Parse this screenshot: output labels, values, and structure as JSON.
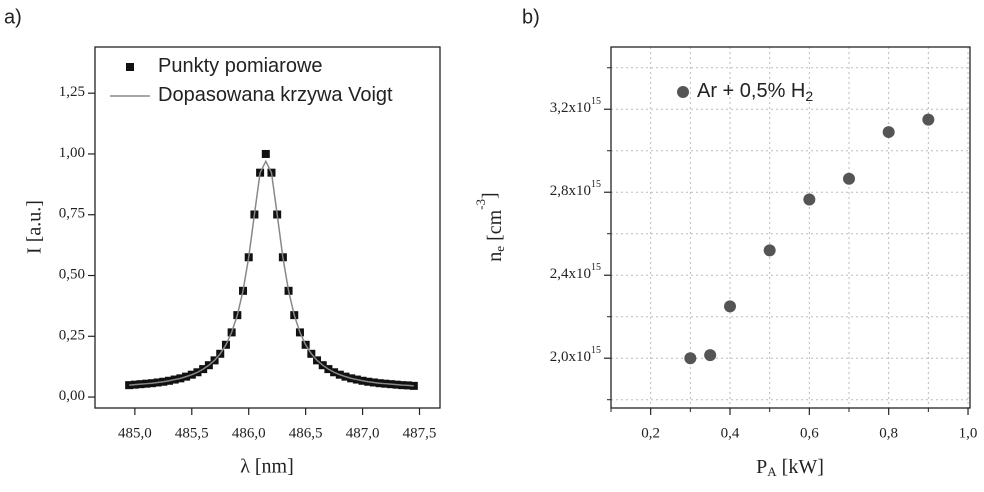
{
  "chart_data": [
    {
      "type": "line",
      "panel_label": "a)",
      "xlabel": "λ [nm]",
      "ylabel": "I [a.u.]",
      "x": [
        484.95,
        485.0,
        485.05,
        485.1,
        485.15,
        485.2,
        485.25,
        485.3,
        485.35,
        485.4,
        485.45,
        485.5,
        485.55,
        485.6,
        485.65,
        485.7,
        485.75,
        485.8,
        485.85,
        485.9,
        485.95,
        486.0,
        486.05,
        486.1,
        486.15,
        486.2,
        486.25,
        486.3,
        486.35,
        486.4,
        486.45,
        486.5,
        486.55,
        486.6,
        486.65,
        486.7,
        486.75,
        486.8,
        486.85,
        486.9,
        486.95,
        487.0,
        487.05,
        487.1,
        487.15,
        487.2,
        487.25,
        487.3,
        487.35,
        487.4,
        487.45
      ],
      "series": [
        {
          "name": "Punkty pomiarowe",
          "color": "#111111",
          "style": "square",
          "values": [
            0.049,
            0.051,
            0.053,
            0.055,
            0.057,
            0.06,
            0.063,
            0.067,
            0.072,
            0.077,
            0.084,
            0.092,
            0.102,
            0.115,
            0.131,
            0.151,
            0.178,
            0.215,
            0.266,
            0.337,
            0.437,
            0.575,
            0.751,
            0.923,
            1.0,
            0.923,
            0.751,
            0.575,
            0.437,
            0.337,
            0.266,
            0.215,
            0.178,
            0.151,
            0.131,
            0.115,
            0.102,
            0.092,
            0.084,
            0.077,
            0.072,
            0.067,
            0.063,
            0.06,
            0.057,
            0.055,
            0.053,
            0.051,
            0.049,
            0.048,
            0.046
          ]
        },
        {
          "name": "Dopasowana krzywa Voigt",
          "color": "#888888",
          "style": "line",
          "values": [
            0.049,
            0.051,
            0.053,
            0.055,
            0.057,
            0.06,
            0.063,
            0.067,
            0.072,
            0.077,
            0.084,
            0.092,
            0.102,
            0.115,
            0.131,
            0.151,
            0.178,
            0.215,
            0.266,
            0.337,
            0.437,
            0.575,
            0.751,
            0.923,
            0.97,
            0.923,
            0.751,
            0.575,
            0.437,
            0.337,
            0.266,
            0.215,
            0.178,
            0.151,
            0.131,
            0.115,
            0.102,
            0.092,
            0.084,
            0.077,
            0.072,
            0.067,
            0.063,
            0.06,
            0.057,
            0.055,
            0.053,
            0.051,
            0.049,
            0.048,
            0.046
          ]
        }
      ],
      "xlim": [
        484.65,
        487.68
      ],
      "ylim": [
        -0.045,
        1.44
      ],
      "xticks": [
        {
          "value": 485,
          "label": "485,0"
        },
        {
          "value": 485.5,
          "label": "485,5"
        },
        {
          "value": 486,
          "label": "486,0"
        },
        {
          "value": 486.5,
          "label": "486,5"
        },
        {
          "value": 487,
          "label": "487,0"
        },
        {
          "value": 487.5,
          "label": "487,5"
        }
      ],
      "yticks": [
        {
          "value": 0,
          "label": "0,00"
        },
        {
          "value": 0.25,
          "label": "0,25"
        },
        {
          "value": 0.5,
          "label": "0,50"
        },
        {
          "value": 0.75,
          "label": "0,75"
        },
        {
          "value": 1,
          "label": "1,00"
        },
        {
          "value": 1.25,
          "label": "1,25"
        }
      ],
      "grid": false,
      "legend": "upper left"
    },
    {
      "type": "scatter",
      "panel_label": "b)",
      "xlabel": [
        "P",
        "A",
        " [kW]"
      ],
      "ylabel": [
        "n",
        "e",
        " [cm",
        "-3",
        "]"
      ],
      "x": [
        0.3,
        0.35,
        0.4,
        0.5,
        0.6,
        0.7,
        0.8,
        0.9
      ],
      "series": [
        {
          "name": "Ar + 0,5% H",
          "name_sub": "2",
          "color": "#555555",
          "style": "circle",
          "values": [
            2000000000000000.0,
            2015000000000000.0,
            2250000000000000.0,
            2520000000000000.0,
            2765000000000000.0,
            2865000000000000.0,
            3090000000000000.0,
            3150000000000000.0
          ]
        }
      ],
      "xlim": [
        0.1,
        1.005
      ],
      "ylim": [
        1760000000000000.0,
        3500000000000000.0
      ],
      "xticks": [
        {
          "value": 0.2,
          "label": "0,2"
        },
        {
          "value": 0.4,
          "label": "0,4"
        },
        {
          "value": 0.6,
          "label": "0,6"
        },
        {
          "value": 0.8,
          "label": "0,8"
        },
        {
          "value": 1.0,
          "label": "1,0"
        }
      ],
      "yticks": [
        {
          "value": 2000000000000000.0,
          "label": "2,0x10"
        },
        {
          "value": 2400000000000000.0,
          "label": "2,4x10"
        },
        {
          "value": 2800000000000000.0,
          "label": "2,8x10"
        },
        {
          "value": 3200000000000000.0,
          "label": "3,2x10"
        }
      ],
      "ytick_exponent": "15",
      "xminorticks": [
        0.1,
        0.3,
        0.5,
        0.7,
        0.9
      ],
      "yminorticks": [
        1800000000000000.0,
        2200000000000000.0,
        2600000000000000.0,
        3000000000000000.0,
        3400000000000000.0
      ],
      "grid": true,
      "legend": "upper left"
    }
  ]
}
